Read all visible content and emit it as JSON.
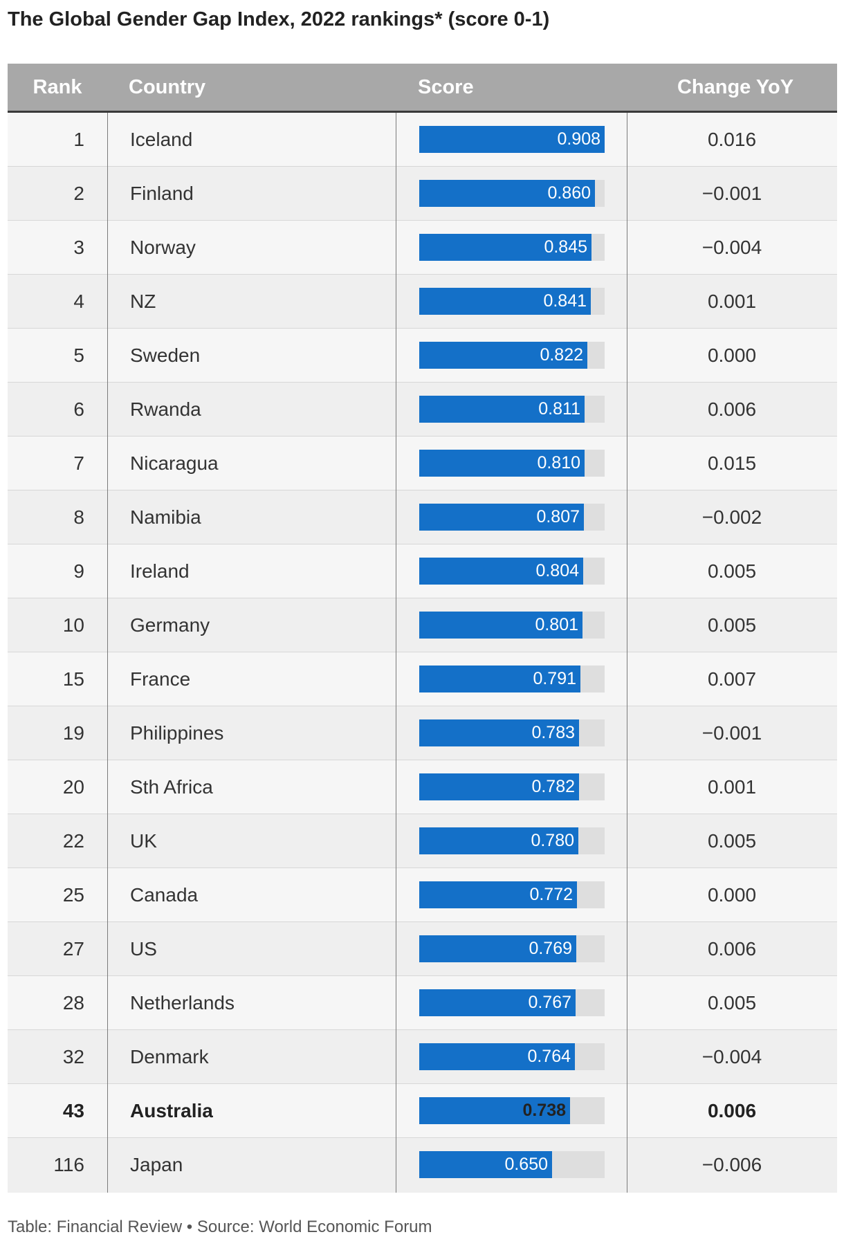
{
  "title": "The Global Gender Gap Index, 2022 rankings* (score 0-1)",
  "headers": {
    "rank": "Rank",
    "country": "Country",
    "score": "Score",
    "change": "Change YoY"
  },
  "colors": {
    "bar": "#1470c8",
    "track": "#dedede",
    "header": "#a8a8a8"
  },
  "chart_data": {
    "type": "bar",
    "title": "The Global Gender Gap Index, 2022 rankings* (score 0-1)",
    "xlim": [
      0,
      0.908
    ],
    "rows": [
      {
        "rank": "1",
        "country": "Iceland",
        "score": 0.908,
        "score_label": "0.908",
        "change": "0.016",
        "bold": false
      },
      {
        "rank": "2",
        "country": "Finland",
        "score": 0.86,
        "score_label": "0.860",
        "change": "−0.001",
        "bold": false
      },
      {
        "rank": "3",
        "country": "Norway",
        "score": 0.845,
        "score_label": "0.845",
        "change": "−0.004",
        "bold": false
      },
      {
        "rank": "4",
        "country": "NZ",
        "score": 0.841,
        "score_label": "0.841",
        "change": "0.001",
        "bold": false
      },
      {
        "rank": "5",
        "country": "Sweden",
        "score": 0.822,
        "score_label": "0.822",
        "change": "0.000",
        "bold": false
      },
      {
        "rank": "6",
        "country": "Rwanda",
        "score": 0.811,
        "score_label": "0.811",
        "change": "0.006",
        "bold": false
      },
      {
        "rank": "7",
        "country": "Nicaragua",
        "score": 0.81,
        "score_label": "0.810",
        "change": "0.015",
        "bold": false
      },
      {
        "rank": "8",
        "country": "Namibia",
        "score": 0.807,
        "score_label": "0.807",
        "change": "−0.002",
        "bold": false
      },
      {
        "rank": "9",
        "country": "Ireland",
        "score": 0.804,
        "score_label": "0.804",
        "change": "0.005",
        "bold": false
      },
      {
        "rank": "10",
        "country": "Germany",
        "score": 0.801,
        "score_label": "0.801",
        "change": "0.005",
        "bold": false
      },
      {
        "rank": "15",
        "country": "France",
        "score": 0.791,
        "score_label": "0.791",
        "change": "0.007",
        "bold": false
      },
      {
        "rank": "19",
        "country": "Philippines",
        "score": 0.783,
        "score_label": "0.783",
        "change": "−0.001",
        "bold": false
      },
      {
        "rank": "20",
        "country": "Sth Africa",
        "score": 0.782,
        "score_label": "0.782",
        "change": "0.001",
        "bold": false
      },
      {
        "rank": "22",
        "country": "UK",
        "score": 0.78,
        "score_label": "0.780",
        "change": "0.005",
        "bold": false
      },
      {
        "rank": "25",
        "country": "Canada",
        "score": 0.772,
        "score_label": "0.772",
        "change": "0.000",
        "bold": false
      },
      {
        "rank": "27",
        "country": "US",
        "score": 0.769,
        "score_label": "0.769",
        "change": "0.006",
        "bold": false
      },
      {
        "rank": "28",
        "country": "Netherlands",
        "score": 0.767,
        "score_label": "0.767",
        "change": "0.005",
        "bold": false
      },
      {
        "rank": "32",
        "country": "Denmark",
        "score": 0.764,
        "score_label": "0.764",
        "change": "−0.004",
        "bold": false
      },
      {
        "rank": "43",
        "country": "Australia",
        "score": 0.738,
        "score_label": "0.738",
        "change": "0.006",
        "bold": true
      },
      {
        "rank": "116",
        "country": "Japan",
        "score": 0.65,
        "score_label": "0.650",
        "change": "−0.006",
        "bold": false
      }
    ]
  },
  "source": "Table: Financial Review • Source: World Economic Forum"
}
